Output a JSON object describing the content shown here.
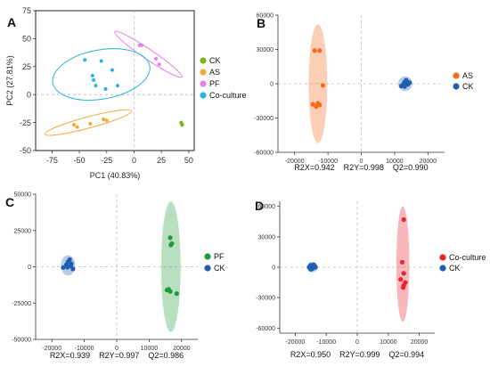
{
  "chart_data": [
    {
      "panel": "A",
      "type": "scatter",
      "xlabel": "PC1 (40.83%)",
      "ylabel": "PC2 (27.81%)",
      "xlim": [
        -90,
        55
      ],
      "ylim": [
        -50,
        75
      ],
      "xticks": [
        -75,
        -50,
        -25,
        0,
        25,
        50
      ],
      "yticks": [
        75,
        50,
        25,
        0,
        -25,
        -50
      ],
      "xtick_labels": [
        "-75",
        "-50",
        "-25",
        "0",
        "25",
        "50"
      ],
      "ytick_labels": [
        "75",
        "50",
        "25",
        "0",
        "-25",
        "-50"
      ],
      "origin_lines": true,
      "legend_position": "right",
      "series": [
        {
          "name": "CK",
          "color": "#7ab51d",
          "points": [
            [
              43,
              -25
            ],
            [
              44,
              -27
            ]
          ],
          "ellipse": {
            "cx": 43.5,
            "cy": -26,
            "rx": 1.0,
            "ry": 2.2,
            "angle": 0
          }
        },
        {
          "name": "AS",
          "color": "#f2a93b",
          "points": [
            [
              -55,
              -27
            ],
            [
              -52,
              -29
            ],
            [
              -40,
              -26
            ],
            [
              -28,
              -22
            ],
            [
              -25,
              -23
            ]
          ],
          "ellipse": {
            "cx": -42,
            "cy": -25,
            "rx": 41,
            "ry": 5.0,
            "angle": -15
          }
        },
        {
          "name": "PF",
          "color": "#e47fe6",
          "points": [
            [
              5,
              44
            ],
            [
              7,
              44
            ],
            [
              20,
              32
            ],
            [
              23,
              27
            ]
          ],
          "ellipse": {
            "cx": 13,
            "cy": 36,
            "rx": 37,
            "ry": 4.5,
            "angle": 34
          }
        },
        {
          "name": "Co-culture",
          "color": "#27b4e4",
          "points": [
            [
              -38,
              17
            ],
            [
              -37,
              13
            ],
            [
              -35,
              8
            ],
            [
              -26,
              5
            ],
            [
              -20,
              22
            ],
            [
              -30,
              30
            ],
            [
              -45,
              31
            ],
            [
              -15,
              8
            ]
          ],
          "ellipse": {
            "cx": -30,
            "cy": 18,
            "rx": 45,
            "ry": 22,
            "angle": -10
          }
        }
      ]
    },
    {
      "panel": "B",
      "type": "scatter",
      "xlim": [
        -25000,
        25000
      ],
      "ylim": [
        -60000,
        60000
      ],
      "xticks": [
        -20000,
        -10000,
        0,
        10000,
        20000
      ],
      "yticks": [
        60000,
        30000,
        0,
        -30000,
        -60000
      ],
      "xtick_labels": [
        "-20000",
        "-10000",
        "0",
        "10000",
        "20000"
      ],
      "ytick_labels": [
        "60000",
        "30000",
        "0",
        "-30000",
        "-60000"
      ],
      "origin_lines": true,
      "legend_position": "right",
      "stats": "R2X=0.942    R2Y=0.998    Q2=0.990",
      "series": [
        {
          "name": "AS",
          "color": "#f26b1d",
          "points": [
            [
              -14000,
              29000
            ],
            [
              -12500,
              29000
            ],
            [
              -11500,
              -1500
            ],
            [
              -14500,
              -18000
            ],
            [
              -13000,
              -17000
            ],
            [
              -13500,
              -20000
            ],
            [
              -12500,
              -18500
            ]
          ],
          "ellipse": {
            "cx": -13000,
            "cy": 0,
            "rx": 2800,
            "ry": 52000,
            "angle": 0
          }
        },
        {
          "name": "CK",
          "color": "#1f5fae",
          "points": [
            [
              12500,
              -1000
            ],
            [
              13000,
              1500
            ],
            [
              13500,
              3000
            ],
            [
              14000,
              -500
            ],
            [
              12000,
              -2000
            ],
            [
              13500,
              0
            ],
            [
              14500,
              1000
            ],
            [
              13000,
              -2500
            ]
          ],
          "ellipse": {
            "cx": 13200,
            "cy": 0,
            "rx": 2100,
            "ry": 6500,
            "angle": 0
          }
        }
      ]
    },
    {
      "panel": "C",
      "type": "scatter",
      "xlim": [
        -25000,
        25000
      ],
      "ylim": [
        -50000,
        50000
      ],
      "xticks": [
        -20000,
        -10000,
        0,
        10000,
        20000
      ],
      "yticks": [
        50000,
        25000,
        0,
        -25000,
        -50000
      ],
      "xtick_labels": [
        "-20000",
        "-10000",
        "0",
        "10000",
        "20000"
      ],
      "ytick_labels": [
        "50000",
        "25000",
        "0",
        "-25000",
        "-50000"
      ],
      "origin_lines": true,
      "legend_position": "right",
      "stats": "R2X=0.939    R2Y=0.997    Q2=0.986",
      "series": [
        {
          "name": "PF",
          "color": "#1f9a3a",
          "points": [
            [
              16500,
              20000
            ],
            [
              17000,
              16000
            ],
            [
              16700,
              15000
            ],
            [
              15500,
              -16000
            ],
            [
              16500,
              -17000
            ],
            [
              18500,
              -18500
            ],
            [
              16000,
              -15500
            ]
          ],
          "ellipse": {
            "cx": 16700,
            "cy": 0,
            "rx": 3000,
            "ry": 45000,
            "angle": 0
          }
        },
        {
          "name": "CK",
          "color": "#1f5fae",
          "points": [
            [
              -16500,
              -500
            ],
            [
              -15500,
              1500
            ],
            [
              -15000,
              3500
            ],
            [
              -14500,
              5000
            ],
            [
              -14000,
              2000
            ],
            [
              -13500,
              -1500
            ],
            [
              -15200,
              -300
            ],
            [
              -14200,
              500
            ]
          ],
          "ellipse": {
            "cx": -15000,
            "cy": 1000,
            "rx": 2200,
            "ry": 7000,
            "angle": 0
          }
        }
      ]
    },
    {
      "panel": "D",
      "type": "scatter",
      "xlim": [
        -25000,
        25000
      ],
      "ylim": [
        -65000,
        65000
      ],
      "xticks": [
        -20000,
        -10000,
        0,
        10000,
        20000
      ],
      "yticks": [
        60000,
        30000,
        0,
        -30000,
        -60000
      ],
      "xtick_labels": [
        "-20000",
        "-10000",
        "0",
        "10000",
        "20000"
      ],
      "ytick_labels": [
        "60000",
        "30000",
        "0",
        "-30000",
        "-60000"
      ],
      "origin_lines": true,
      "legend_position": "right",
      "stats": "R2X=0.950    R2Y=0.999    Q2=0.994",
      "series": [
        {
          "name": "Co-culture",
          "color": "#e8232b",
          "points": [
            [
              15000,
              47000
            ],
            [
              14500,
              5000
            ],
            [
              15000,
              -6000
            ],
            [
              14000,
              -12000
            ],
            [
              15500,
              -15000
            ],
            [
              14800,
              -20000
            ],
            [
              15000,
              -18000
            ]
          ],
          "ellipse": {
            "cx": 14700,
            "cy": 3000,
            "rx": 2100,
            "ry": 57000,
            "angle": 0
          }
        },
        {
          "name": "CK",
          "color": "#1f5fae",
          "points": [
            [
              -15500,
              0
            ],
            [
              -15000,
              2000
            ],
            [
              -14000,
              1500
            ],
            [
              -14500,
              -1500
            ],
            [
              -13500,
              0
            ],
            [
              -15000,
              -2000
            ],
            [
              -14000,
              2500
            ],
            [
              -14500,
              -500
            ]
          ],
          "ellipse": {
            "cx": -14500,
            "cy": 0,
            "rx": 1800,
            "ry": 5000,
            "angle": 0
          }
        }
      ]
    }
  ]
}
